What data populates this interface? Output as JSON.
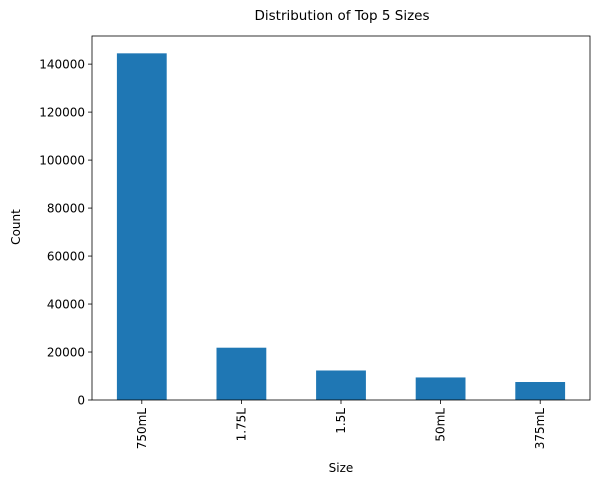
{
  "chart_data": {
    "type": "bar",
    "title": "Distribution of Top 5 Sizes",
    "xlabel": "Size",
    "ylabel": "Count",
    "categories": [
      "750mL",
      "1.75L",
      "1.5L",
      "50mL",
      "375mL"
    ],
    "values": [
      144500,
      21800,
      12300,
      9400,
      7500
    ],
    "ylim": [
      0,
      151725
    ],
    "yticks": [
      0,
      20000,
      40000,
      60000,
      80000,
      100000,
      120000,
      140000
    ],
    "bar_color": "#1f77b4",
    "grid": false,
    "legend": false
  }
}
